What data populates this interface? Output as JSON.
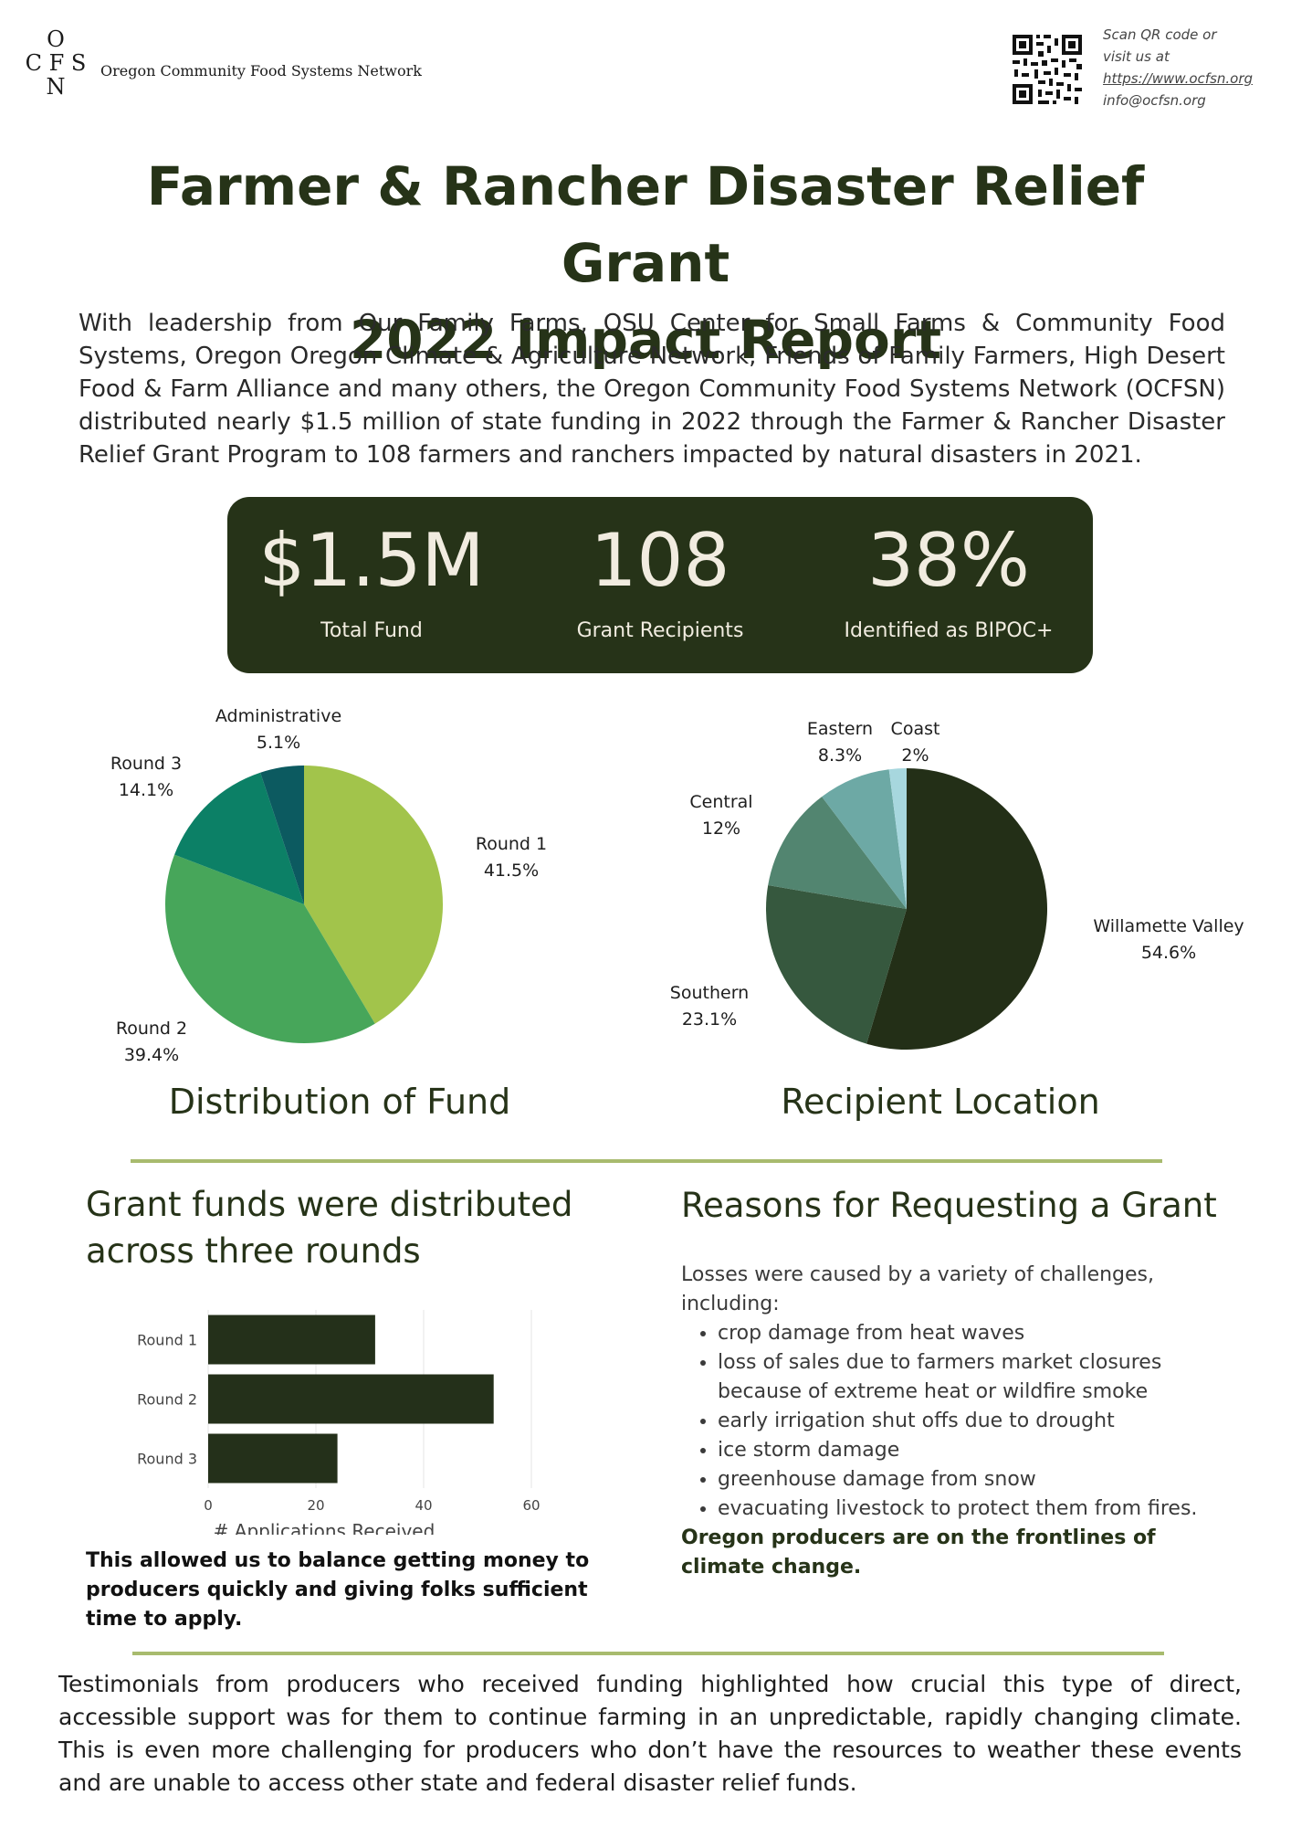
{
  "header": {
    "logo_letters": {
      "top": "O",
      "middle": "C F S",
      "bottom": "N"
    },
    "logo_name": "Oregon Community Food Systems Network",
    "qr_lines": [
      "Scan QR code or",
      "visit us at",
      "https://www.ocfsn.org",
      "info@ocfsn.org"
    ]
  },
  "title_lines": [
    "Farmer & Rancher Disaster Relief Grant",
    "2022 Impact Report"
  ],
  "intro": "With leadership from Our Family Farms, OSU Center for Small Farms & Community Food Systems, Oregon Oregon Climate & Agriculture Network, Friends of Family Farmers, High Desert Food & Farm Alliance and many others, the Oregon Community Food Systems Network (OCFSN) distributed nearly $1.5 million of state funding in 2022 through the Farmer & Rancher Disaster Relief Grant Program to 108 farmers and ranchers impacted by natural disasters in 2021.",
  "stats": [
    {
      "value": "$1.5M",
      "label": "Total Fund"
    },
    {
      "value": "108",
      "label": "Grant Recipients"
    },
    {
      "value": "38%",
      "label": "Identified as BIPOC+"
    }
  ],
  "colors": {
    "dark_green": "#263318",
    "divider": "#a8bb6e",
    "bar": "#24301a"
  },
  "chart_data": [
    {
      "type": "pie",
      "title": "Distribution of Fund",
      "slices": [
        {
          "label": "Round 1",
          "display": "41.5%",
          "value": 41.5,
          "color": "#a2c44b"
        },
        {
          "label": "Round 2",
          "display": "39.4%",
          "value": 39.4,
          "color": "#47a65a"
        },
        {
          "label": "Round 3",
          "display": "14.1%",
          "value": 14.1,
          "color": "#0c8066"
        },
        {
          "label": "Administrative",
          "display": "5.1%",
          "value": 5.1,
          "color": "#0c5a60"
        }
      ]
    },
    {
      "type": "pie",
      "title": "Recipient Location",
      "slices": [
        {
          "label": "Willamette Valley",
          "display": "54.6%",
          "value": 54.6,
          "color": "#232f17"
        },
        {
          "label": "Southern",
          "display": "23.1%",
          "value": 23.1,
          "color": "#36583e"
        },
        {
          "label": "Central",
          "display": "12%",
          "value": 12,
          "color": "#528570"
        },
        {
          "label": "Eastern",
          "display": "8.3%",
          "value": 8.3,
          "color": "#6da9a5"
        },
        {
          "label": "Coast",
          "display": "2%",
          "value": 2,
          "color": "#a7d7de"
        }
      ]
    },
    {
      "type": "bar",
      "orientation": "horizontal",
      "categories": [
        "Round 1",
        "Round 2",
        "Round 3"
      ],
      "values": [
        31,
        53,
        24
      ],
      "xlabel": "# Applications Received",
      "xlim": [
        0,
        60
      ],
      "xticks": [
        0,
        20,
        40,
        60
      ],
      "grid": true
    }
  ],
  "rounds_section": {
    "heading_lines": [
      "Grant funds were distributed",
      "across three rounds"
    ],
    "note": "This allowed us to balance getting money to producers quickly and giving folks sufficient time to apply."
  },
  "reasons_section": {
    "heading": "Reasons for Requesting a Grant",
    "intro": "Losses were caused by a variety of challenges, including:",
    "items": [
      "crop damage from heat waves",
      "loss of sales due to farmers market closures because of extreme heat or wildfire smoke",
      "early irrigation shut offs due to drought",
      "ice storm damage",
      "greenhouse damage from snow",
      "evacuating livestock to protect them from fires."
    ],
    "note": "Oregon producers are on the frontlines of climate change."
  },
  "testimonial": "Testimonials from producers who received funding highlighted how crucial this type of direct, accessible support was for them to continue farming in an unpredictable, rapidly changing climate. This is even more challenging for producers who don’t have the resources to weather these events and are unable to access other state and federal disaster relief funds."
}
